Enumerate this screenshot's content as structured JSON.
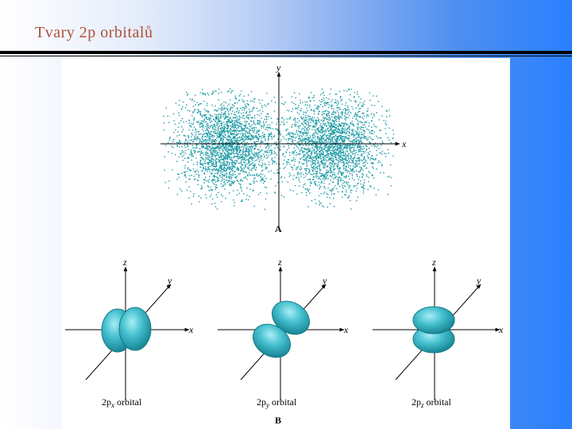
{
  "slide": {
    "title": "Tvary 2p orbitalů"
  },
  "figure": {
    "panel_a": {
      "label": "A",
      "axis_x": "x",
      "axis_y": "y"
    },
    "panel_b": {
      "label": "B",
      "orbitals": [
        {
          "axis_z": "z",
          "axis_y": "y",
          "axis_x": "x",
          "prefix": "2p",
          "sub": "x",
          "suffix": " orbital"
        },
        {
          "axis_z": "z",
          "axis_y": "y",
          "axis_x": "x",
          "prefix": "2p",
          "sub": "y",
          "suffix": " orbital"
        },
        {
          "axis_z": "z",
          "axis_y": "y",
          "axis_x": "x",
          "prefix": "2p",
          "sub": "z",
          "suffix": " orbital"
        }
      ]
    },
    "colors": {
      "dots": "#1d9aa5",
      "lobe": "#38b7c6",
      "lobe_dark": "#1b8a98",
      "title": "#b0503a"
    }
  }
}
